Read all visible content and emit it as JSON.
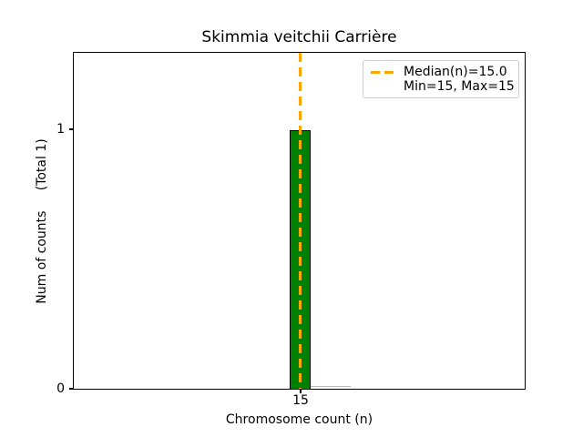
{
  "chart": {
    "title": "Skimmia veitchii Carrière",
    "xlabel": "Chromosome count (n)",
    "ylabel": "Num of counts     (Total 1)",
    "xticks": [
      "15"
    ],
    "yticks": [
      "0",
      "1"
    ]
  },
  "legend": {
    "median_label": "Median(n)=15.0",
    "minmax_label": "Min=15, Max=15"
  },
  "colors": {
    "background": "#ffffff",
    "text": "#000000",
    "axis": "#000000",
    "bar_fill": "#008000",
    "bar_edge": "#000000",
    "median_line": "#FFA500",
    "legend_border": "#cccccc"
  },
  "chart_data": {
    "type": "bar",
    "title": "Skimmia veitchii Carrière",
    "xlabel": "Chromosome count (n)",
    "ylabel": "Num of counts (Total 1)",
    "categories": [
      15
    ],
    "values": [
      1
    ],
    "total_counts": 1,
    "median_n": 15.0,
    "min_n": 15,
    "max_n": 15,
    "xticks": [
      15
    ],
    "yticks": [
      0,
      1
    ],
    "ylim": [
      0,
      1.3
    ],
    "xlim_approx": [
      4.2,
      25.7
    ],
    "grid": false,
    "legend_entries": [
      "Median(n)=15.0",
      "Min=15, Max=15"
    ],
    "legend_position": "upper right",
    "bar_color": "#008000",
    "bar_edge_color": "#000000",
    "median_line": {
      "x": 15.0,
      "orientation": "vertical",
      "style": "dashed",
      "color": "#FFA500"
    }
  }
}
